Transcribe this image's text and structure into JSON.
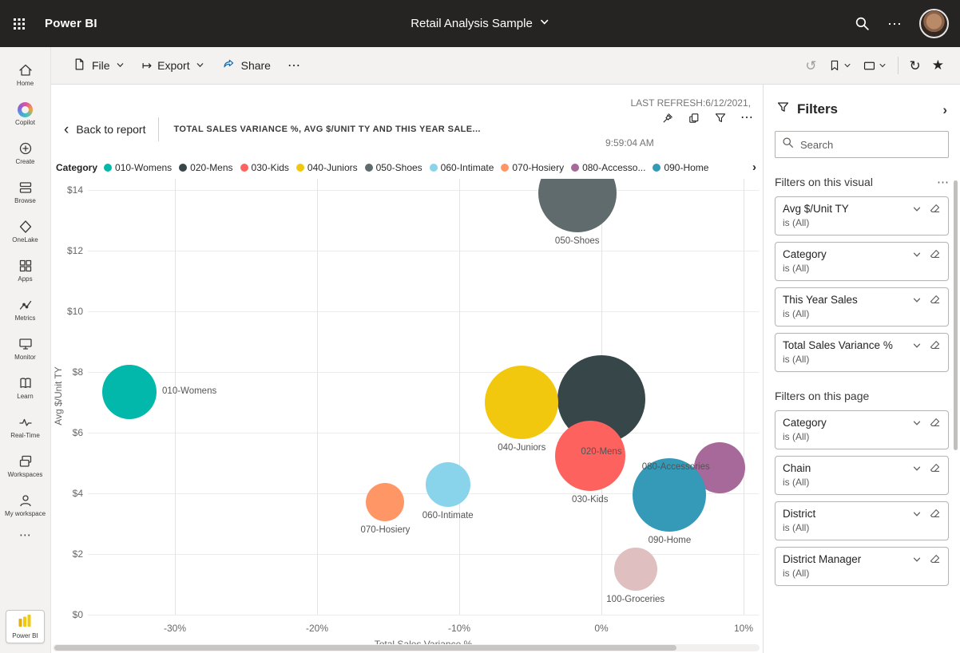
{
  "icons": {
    "ellipsis": "⋯",
    "undo": "↺",
    "refresh": "↻",
    "star": "★",
    "chevron_right": "›",
    "chevron_left": "‹",
    "export_arrow": "↦"
  },
  "topbar": {
    "app_name": "Power BI",
    "report_title": "Retail Analysis Sample"
  },
  "rail": {
    "items": [
      {
        "label": "Home",
        "icon": "home-icon"
      },
      {
        "label": "Copilot",
        "icon": "copilot-icon"
      },
      {
        "label": "Create",
        "icon": "create-icon"
      },
      {
        "label": "Browse",
        "icon": "browse-icon"
      },
      {
        "label": "OneLake",
        "icon": "onelake-icon"
      },
      {
        "label": "Apps",
        "icon": "apps-icon"
      },
      {
        "label": "Metrics",
        "icon": "metrics-icon"
      },
      {
        "label": "Monitor",
        "icon": "monitor-icon"
      },
      {
        "label": "Learn",
        "icon": "learn-icon"
      },
      {
        "label": "Real-Time",
        "icon": "realtime-icon"
      },
      {
        "label": "Workspaces",
        "icon": "workspaces-icon"
      },
      {
        "label": "My workspace",
        "icon": "myworkspace-icon"
      }
    ],
    "badge_label": "Power BI"
  },
  "toolbar": {
    "file_label": "File",
    "export_label": "Export",
    "share_label": "Share"
  },
  "report_header": {
    "back_label": "Back to report",
    "title": "TOTAL SALES VARIANCE %, AVG $/UNIT TY AND THIS YEAR SALE...",
    "last_refresh_line1": "LAST REFRESH:6/12/2021,",
    "last_refresh_line2": "9:59:04 AM"
  },
  "filters": {
    "title": "Filters",
    "search_placeholder": "Search",
    "visual_section_title": "Filters on this visual",
    "page_section_title": "Filters on this page",
    "visual_filters": [
      {
        "name": "Avg $/Unit TY",
        "value": "is (All)"
      },
      {
        "name": "Category",
        "value": "is (All)"
      },
      {
        "name": "This Year Sales",
        "value": "is (All)"
      },
      {
        "name": "Total Sales Variance %",
        "value": "is (All)"
      }
    ],
    "page_filters": [
      {
        "name": "Category",
        "value": "is (All)"
      },
      {
        "name": "Chain",
        "value": "is (All)"
      },
      {
        "name": "District",
        "value": "is (All)"
      },
      {
        "name": "District Manager",
        "value": "is (All)"
      }
    ]
  },
  "chart_data": {
    "type": "scatter",
    "title": "Total Sales Variance %, Avg $/Unit TY and This Year Sales",
    "xlabel": "Total Sales Variance %",
    "ylabel": "Avg $/Unit TY",
    "legend_title": "Category",
    "legend_position": "top",
    "grid": true,
    "xlim": [
      -36.1,
      11.1
    ],
    "ylim": [
      0,
      14.2
    ],
    "x_ticks": [
      "-30%",
      "-20%",
      "-10%",
      "0%",
      "10%"
    ],
    "x_tick_values": [
      -30,
      -20,
      -10,
      0,
      10
    ],
    "y_ticks": [
      "$0",
      "$2",
      "$4",
      "$6",
      "$8",
      "$10",
      "$12",
      "$14"
    ],
    "y_tick_values": [
      0,
      2,
      4,
      6,
      8,
      10,
      12,
      14
    ],
    "size_meaning": "This Year Sales",
    "points": [
      {
        "label": "050-Shoes",
        "color": "#5F6B6D",
        "x": -1.7,
        "y": 13.9,
        "size": 49,
        "label_pos": "below"
      },
      {
        "label": "020-Mens",
        "color": "#374649",
        "x": 0.0,
        "y": 7.1,
        "size": 55,
        "label_pos": "below"
      },
      {
        "label": "010-Womens",
        "color": "#01B8AA",
        "x": -33.2,
        "y": 7.35,
        "size": 34,
        "label_pos": "right"
      },
      {
        "label": "040-Juniors",
        "color": "#F2C80F",
        "x": -5.6,
        "y": 7.0,
        "size": 46,
        "label_pos": "below"
      },
      {
        "label": "080-Accessories",
        "color": "#A66999",
        "x": 8.3,
        "y": 4.85,
        "size": 32,
        "label_pos": "left"
      },
      {
        "label": "030-Kids",
        "color": "#FD625E",
        "x": -0.8,
        "y": 5.25,
        "size": 44,
        "label_pos": "below"
      },
      {
        "label": "090-Home",
        "color": "#3599B8",
        "x": 4.8,
        "y": 3.95,
        "size": 46,
        "label_pos": "below"
      },
      {
        "label": "060-Intimate",
        "color": "#8AD4EB",
        "x": -10.8,
        "y": 4.3,
        "size": 28,
        "label_pos": "below"
      },
      {
        "label": "070-Hosiery",
        "color": "#FE9666",
        "x": -15.2,
        "y": 3.7,
        "size": 24,
        "label_pos": "below"
      },
      {
        "label": "100-Groceries",
        "color": "#DFBFBF",
        "x": 2.4,
        "y": 1.5,
        "size": 27,
        "label_pos": "below"
      }
    ],
    "legend": [
      {
        "label": "010-Womens",
        "color": "#01B8AA"
      },
      {
        "label": "020-Mens",
        "color": "#374649"
      },
      {
        "label": "030-Kids",
        "color": "#FD625E"
      },
      {
        "label": "040-Juniors",
        "color": "#F2C80F"
      },
      {
        "label": "050-Shoes",
        "color": "#5F6B6D"
      },
      {
        "label": "060-Intimate",
        "color": "#8AD4EB"
      },
      {
        "label": "070-Hosiery",
        "color": "#FE9666"
      },
      {
        "label": "080-Accesso...",
        "color": "#A66999"
      },
      {
        "label": "090-Home",
        "color": "#3599B8"
      }
    ]
  }
}
